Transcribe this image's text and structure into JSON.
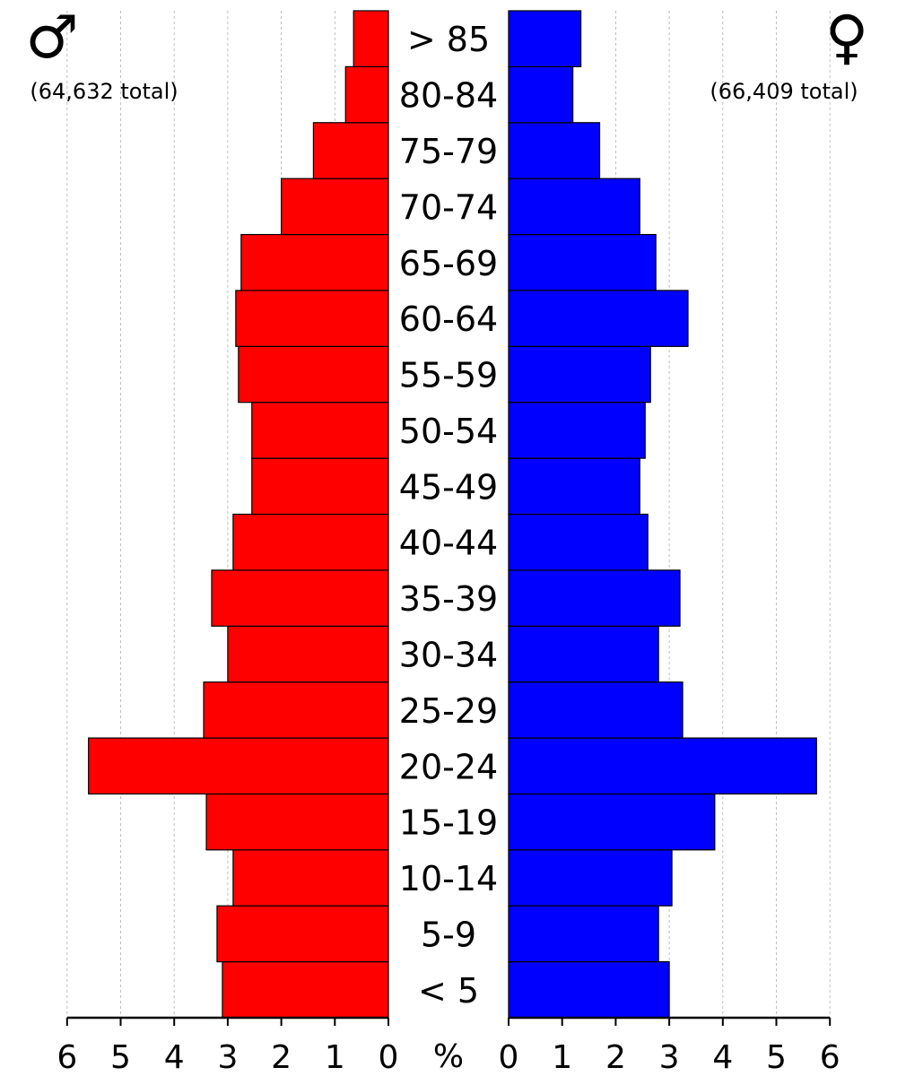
{
  "chart_data": {
    "type": "bar",
    "orientation": "horizontal-population-pyramid",
    "categories": [
      "< 5",
      "5-9",
      "10-14",
      "15-19",
      "20-24",
      "25-29",
      "30-34",
      "35-39",
      "40-44",
      "45-49",
      "50-54",
      "55-59",
      "60-64",
      "65-69",
      "70-74",
      "75-79",
      "80-84",
      "> 85"
    ],
    "series": [
      {
        "symbol": "♂",
        "total_label": "(64,632 total)",
        "color": "#ff0000",
        "values": [
          3.1,
          3.2,
          2.9,
          3.4,
          5.6,
          3.45,
          3.0,
          3.3,
          2.9,
          2.55,
          2.55,
          2.8,
          2.85,
          2.75,
          2.0,
          1.4,
          0.8,
          0.65
        ]
      },
      {
        "symbol": "♀",
        "total_label": "(66,409 total)",
        "color": "#0000ff",
        "values": [
          3.0,
          2.8,
          3.05,
          3.85,
          5.75,
          3.25,
          2.8,
          3.2,
          2.6,
          2.45,
          2.55,
          2.65,
          3.35,
          2.75,
          2.45,
          1.7,
          1.2,
          1.35
        ]
      }
    ],
    "axis_unit": "%",
    "xlim": [
      0,
      6
    ],
    "ticks": [
      "0",
      "1",
      "2",
      "3",
      "4",
      "5",
      "6"
    ],
    "grid": true
  }
}
